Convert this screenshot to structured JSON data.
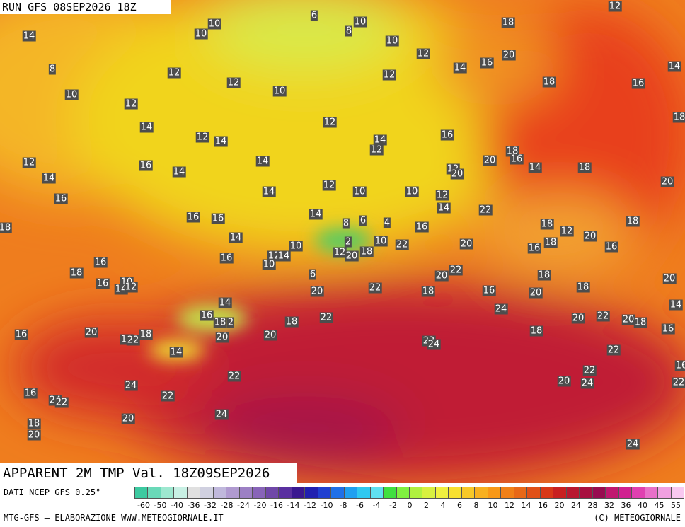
{
  "header": {
    "run": "RUN GFS 08SEP2026 18Z",
    "caption": "APPARENT 2M TMP Val. 18Z09SEP2026"
  },
  "footer": {
    "source": "DATI NCEP GFS 0.25°",
    "credit": "MTG-GFS — ELABORAZIONE WWW.METEOGIORNALE.IT",
    "copyright": "(C) METEOGIORNALE"
  },
  "colorbar": {
    "ticks": [
      -60,
      -50,
      -40,
      -36,
      -32,
      -28,
      -24,
      -20,
      -16,
      -14,
      -12,
      -10,
      -8,
      -6,
      -4,
      -2,
      0,
      2,
      4,
      6,
      8,
      10,
      12,
      14,
      16,
      20,
      24,
      28,
      32,
      36,
      40,
      45,
      55
    ]
  },
  "map": {
    "labels": [
      6,
      10,
      10,
      14,
      10,
      8,
      10,
      12,
      18,
      8,
      12,
      20,
      12,
      16,
      14,
      14,
      12,
      12,
      10,
      18,
      16,
      10,
      12,
      14,
      12,
      12,
      14,
      16,
      18,
      14,
      12,
      12,
      16,
      14,
      18,
      16,
      20,
      14,
      12,
      20,
      18,
      14,
      14,
      20,
      12,
      10,
      10,
      14,
      12,
      16,
      22,
      14,
      14,
      16,
      16,
      18,
      8,
      6,
      4,
      18,
      16,
      18,
      12,
      20,
      14,
      10,
      10,
      2,
      22,
      20,
      18,
      16,
      16,
      12,
      18,
      20,
      12,
      14,
      16,
      10,
      16,
      18,
      6,
      22,
      20,
      18,
      20,
      16,
      10,
      14,
      12,
      22,
      18,
      20,
      16,
      18,
      20,
      14,
      14,
      24,
      16,
      22,
      18,
      2,
      22,
      20,
      20,
      18,
      18,
      16,
      20,
      20,
      18,
      10,
      22,
      18,
      20,
      16,
      22,
      24,
      14,
      22,
      16,
      22,
      22,
      20,
      24,
      22,
      24,
      16,
      22,
      24,
      22,
      24,
      20,
      18,
      20,
      24
    ]
  }
}
